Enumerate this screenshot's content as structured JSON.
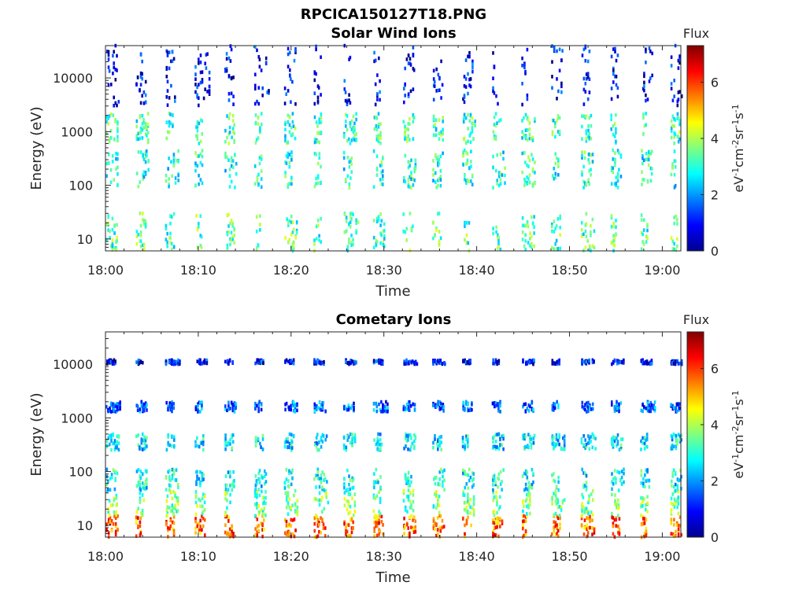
{
  "figure": {
    "title": "RPCICA150127T18.PNG"
  },
  "chart_data": [
    {
      "type": "heatmap",
      "title": "Solar Wind Ions",
      "xlabel": "Time",
      "ylabel": "Energy (eV)",
      "x_range": [
        "18:00",
        "19:02"
      ],
      "x_ticks": [
        "18:00",
        "18:10",
        "18:20",
        "18:30",
        "18:40",
        "18:50",
        "19:00"
      ],
      "y_scale": "log",
      "y_range": [
        6,
        40000
      ],
      "y_ticks": [
        10,
        100,
        1000,
        10000
      ],
      "y_tick_labels": [
        "10",
        "100",
        "1000",
        "10000"
      ],
      "grid": false,
      "colorbar": {
        "label": "Flux",
        "unit_label": "eV-1cm-2sr-1s-1",
        "range": [
          0,
          7.3
        ],
        "ticks": [
          0,
          2,
          4,
          6
        ],
        "tick_labels": [
          "0",
          "2",
          "4",
          "6"
        ],
        "colormap": "jet"
      },
      "sweep_cycle_minutes": 3.2,
      "energy_bands": [
        {
          "energy_eV": [
            6,
            30
          ],
          "flux": 3.3
        },
        {
          "energy_eV": [
            90,
            450
          ],
          "flux": 3.0
        },
        {
          "energy_eV": [
            600,
            2200
          ],
          "flux": 3.2
        },
        {
          "energy_eV": [
            3000,
            40000
          ],
          "flux": 0.9
        }
      ]
    },
    {
      "type": "heatmap",
      "title": "Cometary Ions",
      "xlabel": "Time",
      "ylabel": "Energy (eV)",
      "x_range": [
        "18:00",
        "19:02"
      ],
      "x_ticks": [
        "18:00",
        "18:10",
        "18:20",
        "18:30",
        "18:40",
        "18:50",
        "19:00"
      ],
      "y_scale": "log",
      "y_range": [
        6,
        40000
      ],
      "y_ticks": [
        10,
        100,
        1000,
        10000
      ],
      "y_tick_labels": [
        "10",
        "100",
        "1000",
        "10000"
      ],
      "grid": false,
      "colorbar": {
        "label": "Flux",
        "unit_label": "eV-1cm-2sr-1s-1",
        "range": [
          0,
          7.3
        ],
        "ticks": [
          0,
          2,
          4,
          6
        ],
        "tick_labels": [
          "0",
          "2",
          "4",
          "6"
        ],
        "colormap": "jet"
      },
      "sweep_cycle_minutes": 3.2,
      "energy_bands": [
        {
          "energy_eV": [
            6,
            15
          ],
          "flux": 5.6
        },
        {
          "energy_eV": [
            15,
            45
          ],
          "flux": 3.6
        },
        {
          "energy_eV": [
            45,
            110
          ],
          "flux": 2.8
        },
        {
          "energy_eV": [
            250,
            500
          ],
          "flux": 2.6
        },
        {
          "energy_eV": [
            1300,
            2000
          ],
          "flux": 1.6
        },
        {
          "energy_eV": [
            10000,
            12000
          ],
          "flux": 1.0
        }
      ]
    }
  ]
}
